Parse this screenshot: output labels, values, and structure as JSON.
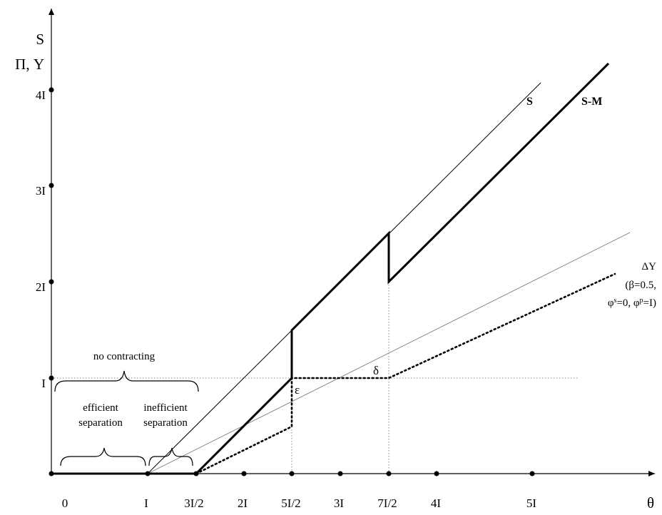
{
  "axes": {
    "y_label_line1": "S",
    "y_label_line2": "Π, Y",
    "x_label": "θ",
    "x_ticks": [
      "0",
      "I",
      "3I/2",
      "2I",
      "5I/2",
      "3I",
      "7I/2",
      "4I",
      "5I"
    ],
    "y_ticks": [
      "I",
      "2I",
      "3I",
      "4I"
    ]
  },
  "curves": {
    "s_label": "S",
    "sm_label": "S-M",
    "dy_label": "ΔY",
    "dy_param_1": "(β=0.5,",
    "dy_param_2_a": "φ",
    "dy_param_2_a_sup": "s",
    "dy_param_2_b": "=0, φ",
    "dy_param_2_b_sup": "p",
    "dy_param_2_c": "=I)"
  },
  "annotations": {
    "delta": "δ",
    "epsilon": "ε",
    "no_contracting": "no contracting",
    "efficient_1": "efficient",
    "efficient_2": "separation",
    "inefficient_1": "inefficient",
    "inefficient_2": "separation"
  }
}
